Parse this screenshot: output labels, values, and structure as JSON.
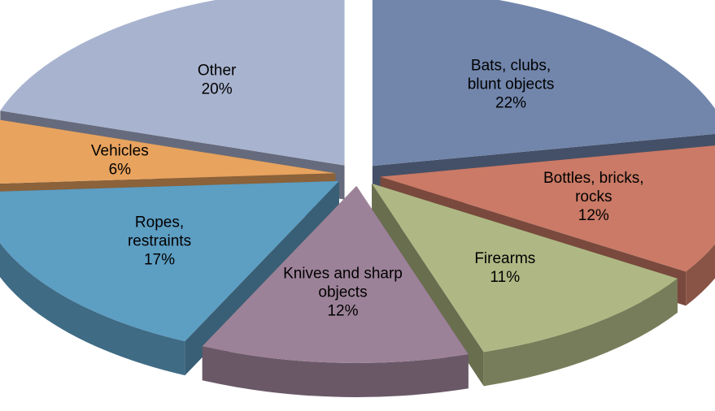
{
  "chart_data": {
    "type": "pie",
    "title": "",
    "slices": [
      {
        "label": [
          "Bats, clubs,",
          "blunt objects"
        ],
        "value": 22,
        "display": "22%",
        "color": "#7286ac"
      },
      {
        "label": [
          "Bottles, bricks,",
          "rocks"
        ],
        "value": 12,
        "display": "12%",
        "color": "#ca7a66"
      },
      {
        "label": [
          "Firearms"
        ],
        "value": 11,
        "display": "11%",
        "color": "#afb884"
      },
      {
        "label": [
          "Knives and sharp",
          "objects"
        ],
        "value": 12,
        "display": "12%",
        "color": "#9c8298"
      },
      {
        "label": [
          "Ropes,",
          "restraints"
        ],
        "value": 17,
        "display": "17%",
        "color": "#5d9ec3"
      },
      {
        "label": [
          "Vehicles"
        ],
        "value": 6,
        "display": "6%",
        "color": "#e8a35f"
      },
      {
        "label": [
          "Other"
        ],
        "value": 20,
        "display": "20%",
        "color": "#a8b3cf"
      }
    ],
    "exploded": true,
    "three_d": true,
    "legend": "none",
    "grid": false
  }
}
